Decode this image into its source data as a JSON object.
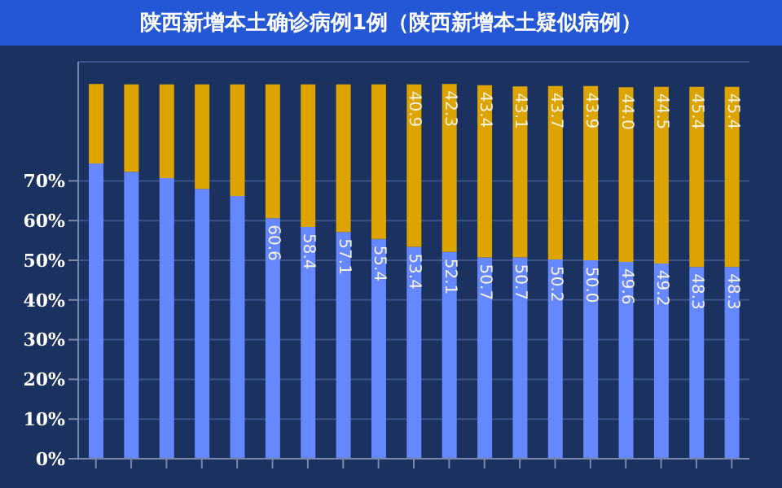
{
  "chart_data": {
    "type": "bar",
    "title": "陕西新增本土确诊病例1例（陕西新增本土疑似病例）",
    "stacked": true,
    "categories": [
      null,
      null,
      null,
      null,
      null,
      null,
      null,
      null,
      null,
      null,
      null,
      null,
      null,
      null,
      null,
      null,
      null,
      null,
      null
    ],
    "series": [
      {
        "color": "#6688ff",
        "values": [
          74.4,
          72.3,
          70.7,
          68.0,
          66.2,
          60.6,
          58.4,
          57.1,
          55.4,
          53.4,
          52.1,
          50.7,
          50.7,
          50.2,
          50.0,
          49.6,
          49.2,
          48.3,
          48.3
        ],
        "value_labels": [
          null,
          null,
          null,
          null,
          null,
          "60.6",
          "58.4",
          "57.1",
          "55.4",
          "53.4",
          "52.1",
          "50.7",
          "50.7",
          "50.2",
          "50.0",
          "49.6",
          "49.2",
          "48.3",
          "48.3"
        ]
      },
      {
        "color": "#dda400",
        "values": [
          20,
          22,
          23.6,
          26.3,
          28.1,
          33.7,
          35.9,
          37.2,
          38.9,
          40.9,
          42.3,
          43.4,
          43.1,
          43.7,
          43.9,
          44.0,
          44.5,
          45.4,
          45.4
        ],
        "value_labels": [
          null,
          null,
          null,
          null,
          null,
          null,
          null,
          null,
          null,
          "40.9",
          "42.3",
          "43.4",
          "43.1",
          "43.7",
          "43.9",
          "44.0",
          "44.5",
          "45.4",
          "45.4"
        ]
      }
    ],
    "ylim": [
      0,
      100
    ],
    "yticks": [
      {
        "value": 0,
        "label": "0%"
      },
      {
        "value": 10,
        "label": "10%"
      },
      {
        "value": 20,
        "label": "20%"
      },
      {
        "value": 30,
        "label": "30%"
      },
      {
        "value": 40,
        "label": "40%"
      },
      {
        "value": 50,
        "label": "50%"
      },
      {
        "value": 60,
        "label": "60%"
      },
      {
        "value": 70,
        "label": "70%"
      }
    ],
    "grid": "y"
  }
}
